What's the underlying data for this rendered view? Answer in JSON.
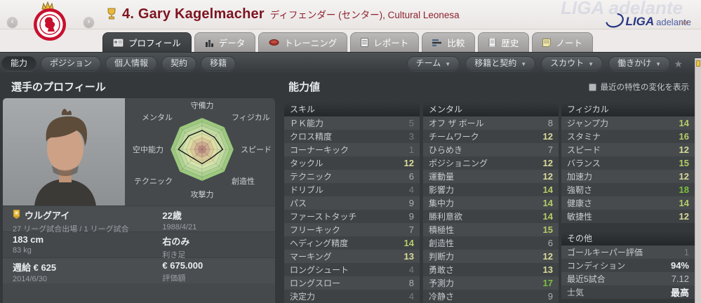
{
  "header": {
    "title": "4. Gary Kagelmacher",
    "subtitle": "ディフェンダー (センター), Cultural Leonesa",
    "league_logo": {
      "primary": "LIGA",
      "secondary": "adelante",
      "lfp": "LFP",
      "watermark": "LIGA adelante"
    }
  },
  "icons": {
    "nav_prev": "‹",
    "nav_next": "›",
    "dropdown": "▼",
    "star": "★"
  },
  "tabs": [
    {
      "label": "プロフィール",
      "active": true
    },
    {
      "label": "データ",
      "active": false
    },
    {
      "label": "トレーニング",
      "active": false
    },
    {
      "label": "レポート",
      "active": false
    },
    {
      "label": "比較",
      "active": false
    },
    {
      "label": "歴史",
      "active": false
    },
    {
      "label": "ノート",
      "active": false
    }
  ],
  "subnav": {
    "left": [
      {
        "label": "能力",
        "active": true
      },
      {
        "label": "ポジション",
        "active": false
      },
      {
        "label": "個人情報",
        "active": false
      },
      {
        "label": "契約",
        "active": false
      },
      {
        "label": "移籍",
        "active": false
      }
    ],
    "right": [
      {
        "label": "チーム"
      },
      {
        "label": "移籍と契約"
      },
      {
        "label": "スカウト"
      },
      {
        "label": "働きかけ"
      }
    ]
  },
  "sections": {
    "profile_title": "選手のプロフィール",
    "attributes_title": "能力値",
    "toggle_label": "最近の特性の変化を表示"
  },
  "profile": {
    "nationality": "ウルグアイ",
    "caps": "27 リーグ試合出場 / 1 リーグ試合",
    "age": "22歳",
    "birth_date": "1988/4/21",
    "height": "183 cm",
    "weight": "83 kg",
    "foot": "右のみ",
    "foot_label": "利き足",
    "wage": "週給 € 625",
    "contract_until": "2014/6/30",
    "value": "€ 675.000",
    "value_label": "評価額"
  },
  "chart_data": {
    "type": "radar",
    "title": "選手のプロフィール",
    "categories": [
      "守備力",
      "フィジカル",
      "スピード",
      "創造性",
      "攻撃力",
      "テクニック",
      "空中能力",
      "メンタル"
    ],
    "values": [
      12,
      11,
      13,
      8,
      9,
      8,
      15,
      12
    ],
    "max": 20
  },
  "attributes": {
    "skills": {
      "title": "スキル",
      "rows": [
        {
          "label": "ＰＫ能力",
          "value": "5"
        },
        {
          "label": "クロス精度",
          "value": "3"
        },
        {
          "label": "コーナーキック",
          "value": "1"
        },
        {
          "label": "タックル",
          "value": "12"
        },
        {
          "label": "テクニック",
          "value": "6"
        },
        {
          "label": "ドリブル",
          "value": "4"
        },
        {
          "label": "パス",
          "value": "9"
        },
        {
          "label": "ファーストタッチ",
          "value": "9"
        },
        {
          "label": "フリーキック",
          "value": "7"
        },
        {
          "label": "ヘディング精度",
          "value": "14"
        },
        {
          "label": "マーキング",
          "value": "13"
        },
        {
          "label": "ロングシュート",
          "value": "4"
        },
        {
          "label": "ロングスロー",
          "value": "8"
        },
        {
          "label": "決定力",
          "value": "4"
        }
      ]
    },
    "mental": {
      "title": "メンタル",
      "rows": [
        {
          "label": "オフ ザ ボール",
          "value": "8"
        },
        {
          "label": "チームワーク",
          "value": "12"
        },
        {
          "label": "ひらめき",
          "value": "7"
        },
        {
          "label": "ポジショニング",
          "value": "12"
        },
        {
          "label": "運動量",
          "value": "12"
        },
        {
          "label": "影響力",
          "value": "14"
        },
        {
          "label": "集中力",
          "value": "14"
        },
        {
          "label": "勝利意欲",
          "value": "14"
        },
        {
          "label": "積極性",
          "value": "15"
        },
        {
          "label": "創造性",
          "value": "6"
        },
        {
          "label": "判断力",
          "value": "12"
        },
        {
          "label": "勇敢さ",
          "value": "13"
        },
        {
          "label": "予測力",
          "value": "17"
        },
        {
          "label": "冷静さ",
          "value": "9"
        }
      ]
    },
    "physical": {
      "title": "フィジカル",
      "rows": [
        {
          "label": "ジャンプ力",
          "value": "14"
        },
        {
          "label": "スタミナ",
          "value": "16"
        },
        {
          "label": "スピード",
          "value": "12"
        },
        {
          "label": "バランス",
          "value": "15"
        },
        {
          "label": "加速力",
          "value": "12"
        },
        {
          "label": "強靭さ",
          "value": "18"
        },
        {
          "label": "健康さ",
          "value": "14"
        },
        {
          "label": "敏捷性",
          "value": "12"
        }
      ]
    },
    "other": {
      "title": "その他",
      "rows": [
        {
          "label": "ゴールキーパー評価",
          "value": "1"
        },
        {
          "label": "コンディション",
          "value": "94%"
        },
        {
          "label": "最近5試合",
          "value": "7.12"
        },
        {
          "label": "士気",
          "value": "最高"
        }
      ]
    }
  },
  "colors": {
    "tier_low": "#767c80",
    "tier_mid": "#a9afb3",
    "tier_good": "#d8db97",
    "tier_great": "#b5cd67",
    "tier_elite": "#7cc03f",
    "special": "#eef1f2",
    "rating": "#b9bfc3",
    "accent_maroon": "#7d1420"
  }
}
